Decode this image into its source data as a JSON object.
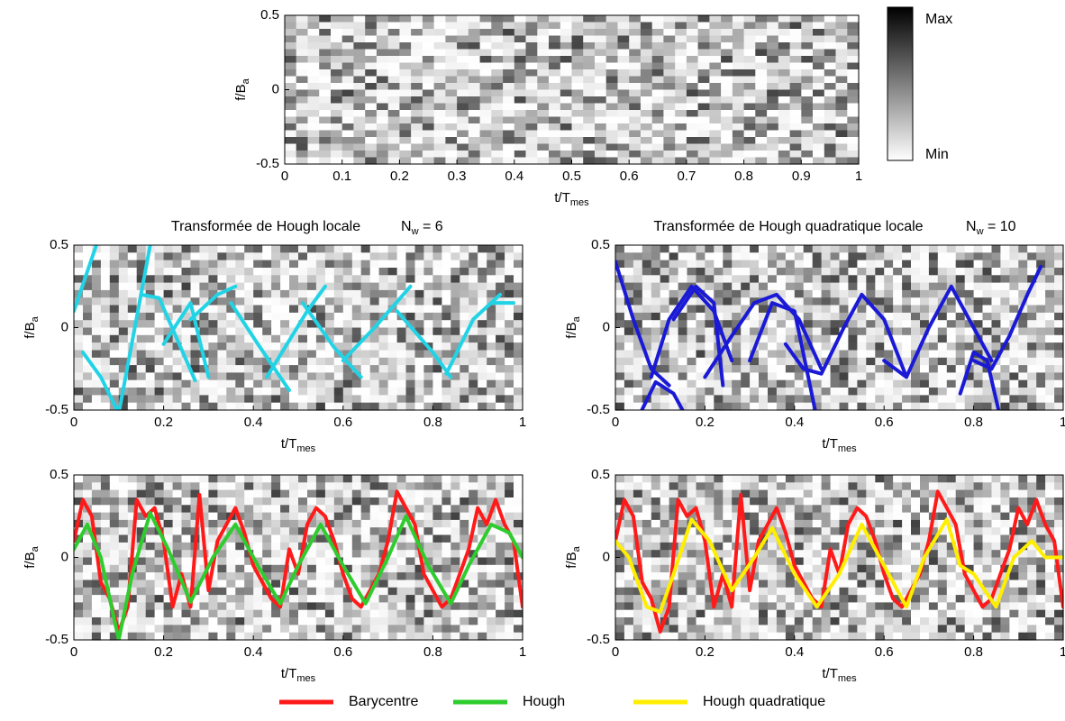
{
  "chart_data": [
    {
      "type": "heatmap",
      "xlabel": {
        "text": "t/T",
        "sub": "mes"
      },
      "ylabel": {
        "text": "f/B",
        "sub": "a"
      },
      "xlim": [
        0,
        1
      ],
      "xticks": [
        0,
        0.1,
        0.2,
        0.3,
        0.4,
        0.5,
        0.6,
        0.7,
        0.8,
        0.9,
        1
      ],
      "ylim": [
        -0.5,
        0.5
      ],
      "yticks": [
        -0.5,
        0,
        0.5
      ],
      "colorbar": {
        "max_label": "Max",
        "min_label": "Min"
      }
    },
    {
      "type": "line",
      "title": "Transformée de Hough locale",
      "annotation": {
        "text": "N",
        "sub": "w",
        "rest": " = 6"
      },
      "xlabel": {
        "text": "t/T",
        "sub": "mes"
      },
      "ylabel": {
        "text": "f/B",
        "sub": "a"
      },
      "xlim": [
        0,
        1
      ],
      "xticks": [
        0,
        0.2,
        0.4,
        0.6,
        0.8,
        1
      ],
      "ylim": [
        -0.5,
        0.5
      ],
      "yticks": [
        -0.5,
        0,
        0.5
      ],
      "series": [
        {
          "color": "#22d3e6",
          "x": [
            0,
            0.05,
            null,
            0.02,
            0.06,
            0.1,
            null,
            0.1,
            0.17,
            null,
            0.15,
            0.19,
            0.27,
            null,
            0.2,
            0.26,
            0.3,
            null,
            0.26,
            0.32,
            0.36,
            null,
            0.35,
            0.41,
            0.48,
            null,
            0.43,
            0.52,
            0.56,
            null,
            0.51,
            0.58,
            0.64,
            null,
            0.6,
            0.67,
            0.75,
            null,
            0.72,
            0.8,
            0.84,
            null,
            0.83,
            0.89,
            0.95,
            null,
            0.93,
            0.98
          ],
          "values": [
            0.1,
            0.5,
            null,
            -0.15,
            -0.3,
            -0.52,
            null,
            -0.52,
            0.5,
            null,
            0.2,
            0.18,
            -0.32,
            null,
            -0.1,
            0.15,
            -0.3,
            null,
            0.05,
            0.2,
            0.25,
            null,
            0.15,
            -0.1,
            -0.38,
            null,
            -0.3,
            0.1,
            0.25,
            null,
            0.15,
            -0.12,
            -0.3,
            null,
            -0.2,
            0,
            0.25,
            null,
            0.1,
            -0.15,
            -0.3,
            null,
            -0.28,
            0.05,
            0.2,
            null,
            0.15,
            0.15
          ]
        }
      ]
    },
    {
      "type": "line",
      "title": "Transformée de Hough quadratique locale",
      "annotation": {
        "text": "N",
        "sub": "w",
        "rest": " = 10"
      },
      "xlabel": {
        "text": "t/T",
        "sub": "mes"
      },
      "ylabel": {
        "text": "f/B",
        "sub": "a"
      },
      "xlim": [
        0,
        1
      ],
      "xticks": [
        0,
        0.2,
        0.4,
        0.6,
        0.8,
        1
      ],
      "ylim": [
        -0.5,
        0.5
      ],
      "yticks": [
        -0.5,
        0,
        0.5
      ],
      "series": [
        {
          "color": "#1a1ad6",
          "x": [
            0,
            0.04,
            0.08,
            0.12,
            null,
            0.05,
            0.09,
            0.13,
            0.16,
            null,
            0.08,
            0.12,
            0.17,
            0.22,
            0.26,
            null,
            0.13,
            0.18,
            0.22,
            0.24,
            null,
            0.2,
            0.26,
            0.31,
            0.36,
            0.41,
            0.46,
            null,
            0.3,
            0.35,
            0.4,
            0.45,
            null,
            0.38,
            0.42,
            0.46,
            0.51,
            0.55,
            0.6,
            0.65,
            null,
            0.6,
            0.65,
            0.7,
            0.75,
            0.8,
            0.84,
            null,
            0.77,
            0.8,
            0.83,
            0.86,
            null,
            0.8,
            0.84,
            0.88,
            0.92,
            0.95
          ],
          "values": [
            0.4,
            0.05,
            -0.25,
            -0.35,
            null,
            -0.55,
            -0.33,
            -0.4,
            -0.55,
            null,
            -0.3,
            0.05,
            0.25,
            0.1,
            -0.2,
            null,
            0.05,
            0.25,
            0.15,
            -0.35,
            null,
            -0.3,
            -0.05,
            0.15,
            0.2,
            0.05,
            -0.25,
            null,
            -0.2,
            0.15,
            0.1,
            -0.55,
            null,
            -0.1,
            -0.25,
            -0.28,
            0,
            0.2,
            0.05,
            -0.3,
            null,
            -0.2,
            -0.3,
            0,
            0.25,
            0,
            -0.2,
            null,
            -0.4,
            -0.15,
            -0.2,
            -0.55,
            null,
            -0.2,
            -0.25,
            -0.05,
            0.2,
            0.37
          ]
        }
      ]
    },
    {
      "type": "line",
      "xlabel": {
        "text": "t/T",
        "sub": "mes"
      },
      "ylabel": {
        "text": "f/B",
        "sub": "a"
      },
      "xlim": [
        0,
        1
      ],
      "xticks": [
        0,
        0.2,
        0.4,
        0.6,
        0.8,
        1
      ],
      "ylim": [
        -0.5,
        0.5
      ],
      "yticks": [
        -0.5,
        0,
        0.5
      ],
      "series": [
        {
          "name": "Barycentre",
          "color": "#ff1a1a",
          "x": [
            0,
            0.02,
            0.04,
            0.06,
            0.08,
            0.1,
            0.12,
            0.14,
            0.16,
            0.18,
            0.2,
            0.22,
            0.24,
            0.26,
            0.28,
            0.3,
            0.32,
            0.34,
            0.36,
            0.38,
            0.4,
            0.42,
            0.44,
            0.46,
            0.48,
            0.5,
            0.52,
            0.54,
            0.56,
            0.58,
            0.6,
            0.62,
            0.64,
            0.66,
            0.68,
            0.7,
            0.72,
            0.74,
            0.76,
            0.78,
            0.8,
            0.82,
            0.84,
            0.86,
            0.88,
            0.9,
            0.92,
            0.94,
            0.96,
            0.98,
            1
          ],
          "values": [
            0.1,
            0.35,
            0.25,
            -0.15,
            -0.25,
            -0.45,
            -0.3,
            0.35,
            0.25,
            0.3,
            0.1,
            -0.3,
            -0.1,
            -0.3,
            0.38,
            -0.2,
            0.1,
            0.2,
            0.3,
            0.15,
            -0.05,
            -0.15,
            -0.25,
            -0.3,
            0.05,
            -0.1,
            0.2,
            0.3,
            0.25,
            0.1,
            -0.1,
            -0.25,
            -0.3,
            -0.2,
            -0.1,
            0.1,
            0.4,
            0.3,
            0.2,
            -0.1,
            -0.2,
            -0.3,
            -0.25,
            -0.1,
            0.05,
            0.3,
            0.2,
            0.35,
            0.2,
            0.1,
            -0.3
          ]
        },
        {
          "name": "Hough",
          "color": "#2ecc2e",
          "x": [
            0,
            0.03,
            0.06,
            0.1,
            0.13,
            0.17,
            0.21,
            0.26,
            0.31,
            0.36,
            0.41,
            0.46,
            0.5,
            0.55,
            0.6,
            0.65,
            0.7,
            0.74,
            0.79,
            0.84,
            0.88,
            0.93,
            0.97,
            1
          ],
          "values": [
            0.05,
            0.2,
            0,
            -0.5,
            -0.1,
            0.27,
            0.05,
            -0.27,
            0,
            0.2,
            -0.05,
            -0.28,
            -0.05,
            0.2,
            -0.05,
            -0.28,
            0,
            0.25,
            -0.05,
            -0.28,
            -0.05,
            0.2,
            0.15,
            0
          ]
        }
      ]
    },
    {
      "type": "line",
      "xlabel": {
        "text": "t/T",
        "sub": "mes"
      },
      "ylabel": {
        "text": "f/B",
        "sub": "a"
      },
      "xlim": [
        0,
        1
      ],
      "xticks": [
        0,
        0.2,
        0.4,
        0.6,
        0.8,
        1
      ],
      "ylim": [
        -0.5,
        0.5
      ],
      "yticks": [
        -0.5,
        0,
        0.5
      ],
      "series": [
        {
          "name": "Barycentre",
          "color": "#ff1a1a",
          "x": [
            0,
            0.02,
            0.04,
            0.06,
            0.08,
            0.1,
            0.12,
            0.14,
            0.16,
            0.18,
            0.2,
            0.22,
            0.24,
            0.26,
            0.28,
            0.3,
            0.32,
            0.34,
            0.36,
            0.38,
            0.4,
            0.42,
            0.44,
            0.46,
            0.48,
            0.5,
            0.52,
            0.54,
            0.56,
            0.58,
            0.6,
            0.62,
            0.64,
            0.66,
            0.68,
            0.7,
            0.72,
            0.74,
            0.76,
            0.78,
            0.8,
            0.82,
            0.84,
            0.86,
            0.88,
            0.9,
            0.92,
            0.94,
            0.96,
            0.98,
            1
          ],
          "values": [
            0.1,
            0.35,
            0.25,
            -0.15,
            -0.25,
            -0.45,
            -0.3,
            0.35,
            0.25,
            0.3,
            0.1,
            -0.3,
            -0.1,
            -0.3,
            0.38,
            -0.2,
            0.1,
            0.2,
            0.3,
            0.15,
            -0.05,
            -0.15,
            -0.25,
            -0.3,
            0.05,
            -0.1,
            0.2,
            0.3,
            0.25,
            0.1,
            -0.1,
            -0.25,
            -0.3,
            -0.2,
            -0.1,
            0.1,
            0.4,
            0.3,
            0.2,
            -0.1,
            -0.2,
            -0.3,
            -0.25,
            -0.1,
            0.05,
            0.3,
            0.2,
            0.35,
            0.2,
            0.1,
            -0.3
          ]
        },
        {
          "name": "Hough quadratique",
          "color": "#ffee00",
          "x": [
            0,
            0.03,
            0.07,
            0.1,
            0.13,
            0.17,
            0.21,
            0.26,
            0.31,
            0.35,
            0.4,
            0.45,
            0.5,
            0.55,
            0.6,
            0.65,
            0.69,
            0.74,
            0.77,
            0.8,
            0.85,
            0.89,
            0.93,
            0.96,
            1
          ],
          "values": [
            0.1,
            0,
            -0.3,
            -0.33,
            -0.1,
            0.23,
            0.1,
            -0.2,
            0,
            0.18,
            -0.1,
            -0.3,
            -0.1,
            0.2,
            -0.05,
            -0.3,
            0,
            0.23,
            -0.05,
            -0.1,
            -0.3,
            0,
            0.1,
            0,
            0
          ]
        }
      ]
    }
  ]
}
